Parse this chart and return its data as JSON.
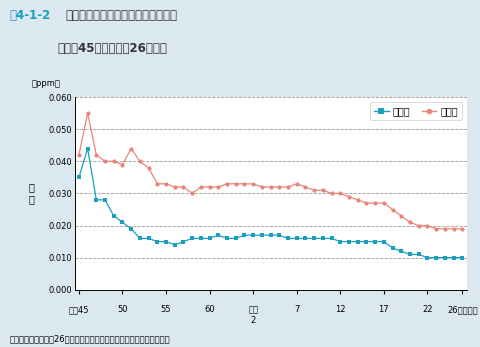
{
  "title_line1": "図4-1-2　二酸化窒素濃度の年平均値の推移",
  "title_line2": "（昭和45年度〜平成26年度）",
  "ylabel": "濃\n度",
  "ylabel_ppm": "（ppm）",
  "source": "資料：環境省「平成26年度大気汚染状況について（報道発表資料）」",
  "background_color": "#dce8f0",
  "plot_background": "#ffffff",
  "legend_label_ippan": "一般局",
  "legend_label_jihai": "自排局",
  "color_ippan": "#1a9fbe",
  "color_jihai": "#e8857a",
  "ylim": [
    0.0,
    0.06
  ],
  "yticks": [
    0.0,
    0.01,
    0.02,
    0.03,
    0.04,
    0.05,
    0.06
  ],
  "xtick_positions": [
    0,
    5,
    10,
    15,
    20,
    25,
    30,
    35,
    40,
    44
  ],
  "ippan_y": [
    0.035,
    0.044,
    0.028,
    0.028,
    0.023,
    0.021,
    0.019,
    0.016,
    0.016,
    0.015,
    0.015,
    0.014,
    0.015,
    0.016,
    0.016,
    0.016,
    0.017,
    0.016,
    0.016,
    0.017,
    0.017,
    0.017,
    0.017,
    0.017,
    0.016,
    0.016,
    0.016,
    0.016,
    0.016,
    0.016,
    0.015,
    0.015,
    0.015,
    0.015,
    0.015,
    0.015,
    0.013,
    0.012,
    0.011,
    0.011,
    0.01,
    0.01,
    0.01,
    0.01,
    0.01
  ],
  "jihai_y": [
    0.042,
    0.055,
    0.042,
    0.04,
    0.04,
    0.039,
    0.044,
    0.04,
    0.038,
    0.033,
    0.033,
    0.032,
    0.032,
    0.03,
    0.032,
    0.032,
    0.032,
    0.033,
    0.033,
    0.033,
    0.033,
    0.032,
    0.032,
    0.032,
    0.032,
    0.033,
    0.032,
    0.031,
    0.031,
    0.03,
    0.03,
    0.029,
    0.028,
    0.027,
    0.027,
    0.027,
    0.025,
    0.023,
    0.021,
    0.02,
    0.02,
    0.019,
    0.019,
    0.019,
    0.019
  ],
  "grid_color": "#999999",
  "grid_linestyle": "--",
  "marker_size": 3,
  "title_color_zu": "#1a9fbe",
  "title_color_main": "#333333"
}
